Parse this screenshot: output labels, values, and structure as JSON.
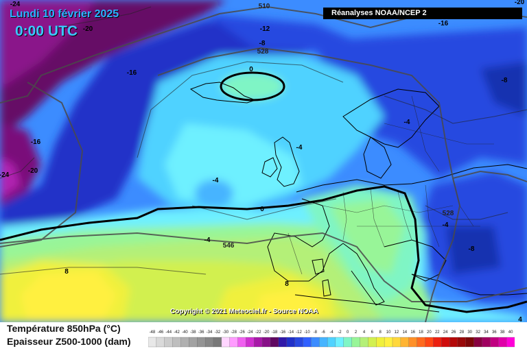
{
  "header": {
    "date": "Lundi 10 février 2025",
    "time": "0:00 UTC",
    "source": "Réanalyses NOAA/NCEP 2"
  },
  "footer": {
    "copyright": "Copyright © 2021 Meteociel.fr - Source NOAA"
  },
  "legend": {
    "line1": "Température 850hPa (°C)",
    "line2": "Epaisseur Z500-1000 (dam)",
    "scale_values": [
      -48,
      -46,
      -44,
      -42,
      -40,
      -38,
      -36,
      -34,
      -32,
      -30,
      -28,
      -26,
      -24,
      -22,
      -20,
      -18,
      -16,
      -14,
      -12,
      -10,
      -8,
      -6,
      -4,
      -2,
      0,
      2,
      4,
      6,
      8,
      10,
      12,
      14,
      16,
      18,
      20,
      22,
      24,
      26,
      28,
      30,
      32,
      34,
      36,
      38,
      40
    ],
    "scale_colors": [
      "#e8e8e8",
      "#dadada",
      "#cccccc",
      "#bebebe",
      "#b0b0b0",
      "#a2a2a2",
      "#949494",
      "#868686",
      "#787878",
      "#ffd6ff",
      "#ff9cff",
      "#f060f0",
      "#d030d0",
      "#a818a8",
      "#881088",
      "#600860",
      "#3018a8",
      "#2030c8",
      "#2848e0",
      "#3060ff",
      "#3c8cff",
      "#46b4ff",
      "#50d2ff",
      "#6ef0ff",
      "#7ff5c5",
      "#98f598",
      "#b4f078",
      "#d2f050",
      "#f0f03c",
      "#fff040",
      "#ffd83c",
      "#ffb432",
      "#ff9028",
      "#ff6a1e",
      "#ff4614",
      "#ec2010",
      "#d00c0c",
      "#b40808",
      "#980808",
      "#7c0608",
      "#880040",
      "#a00060",
      "#c00080",
      "#e000a8",
      "#ff00d8"
    ]
  },
  "contour_labels": [
    {
      "text": "-24",
      "role": "temperature"
    },
    {
      "text": "510",
      "role": "thickness"
    },
    {
      "text": "-20",
      "role": "temperature"
    },
    {
      "text": "-20",
      "role": "temperature"
    },
    {
      "text": "-12",
      "role": "temperature"
    },
    {
      "text": "-16",
      "role": "temperature"
    },
    {
      "text": "-8",
      "role": "temperature"
    },
    {
      "text": "528",
      "role": "thickness"
    },
    {
      "text": "-16",
      "role": "temperature"
    },
    {
      "text": "0",
      "role": "temperature"
    },
    {
      "text": "-8",
      "role": "temperature"
    },
    {
      "text": "-4",
      "role": "temperature"
    },
    {
      "text": "-16",
      "role": "temperature"
    },
    {
      "text": "-4",
      "role": "temperature"
    },
    {
      "text": "-20",
      "role": "temperature"
    },
    {
      "text": "-24",
      "role": "temperature"
    },
    {
      "text": "-4",
      "role": "temperature"
    },
    {
      "text": "0",
      "role": "temperature"
    },
    {
      "text": "528",
      "role": "thickness"
    },
    {
      "text": "-4",
      "role": "temperature"
    },
    {
      "text": "-4",
      "role": "temperature"
    },
    {
      "text": "546",
      "role": "thickness"
    },
    {
      "text": "-8",
      "role": "temperature"
    },
    {
      "text": "8",
      "role": "temperature"
    },
    {
      "text": "8",
      "role": "temperature"
    },
    {
      "text": "4",
      "role": "temperature"
    }
  ]
}
